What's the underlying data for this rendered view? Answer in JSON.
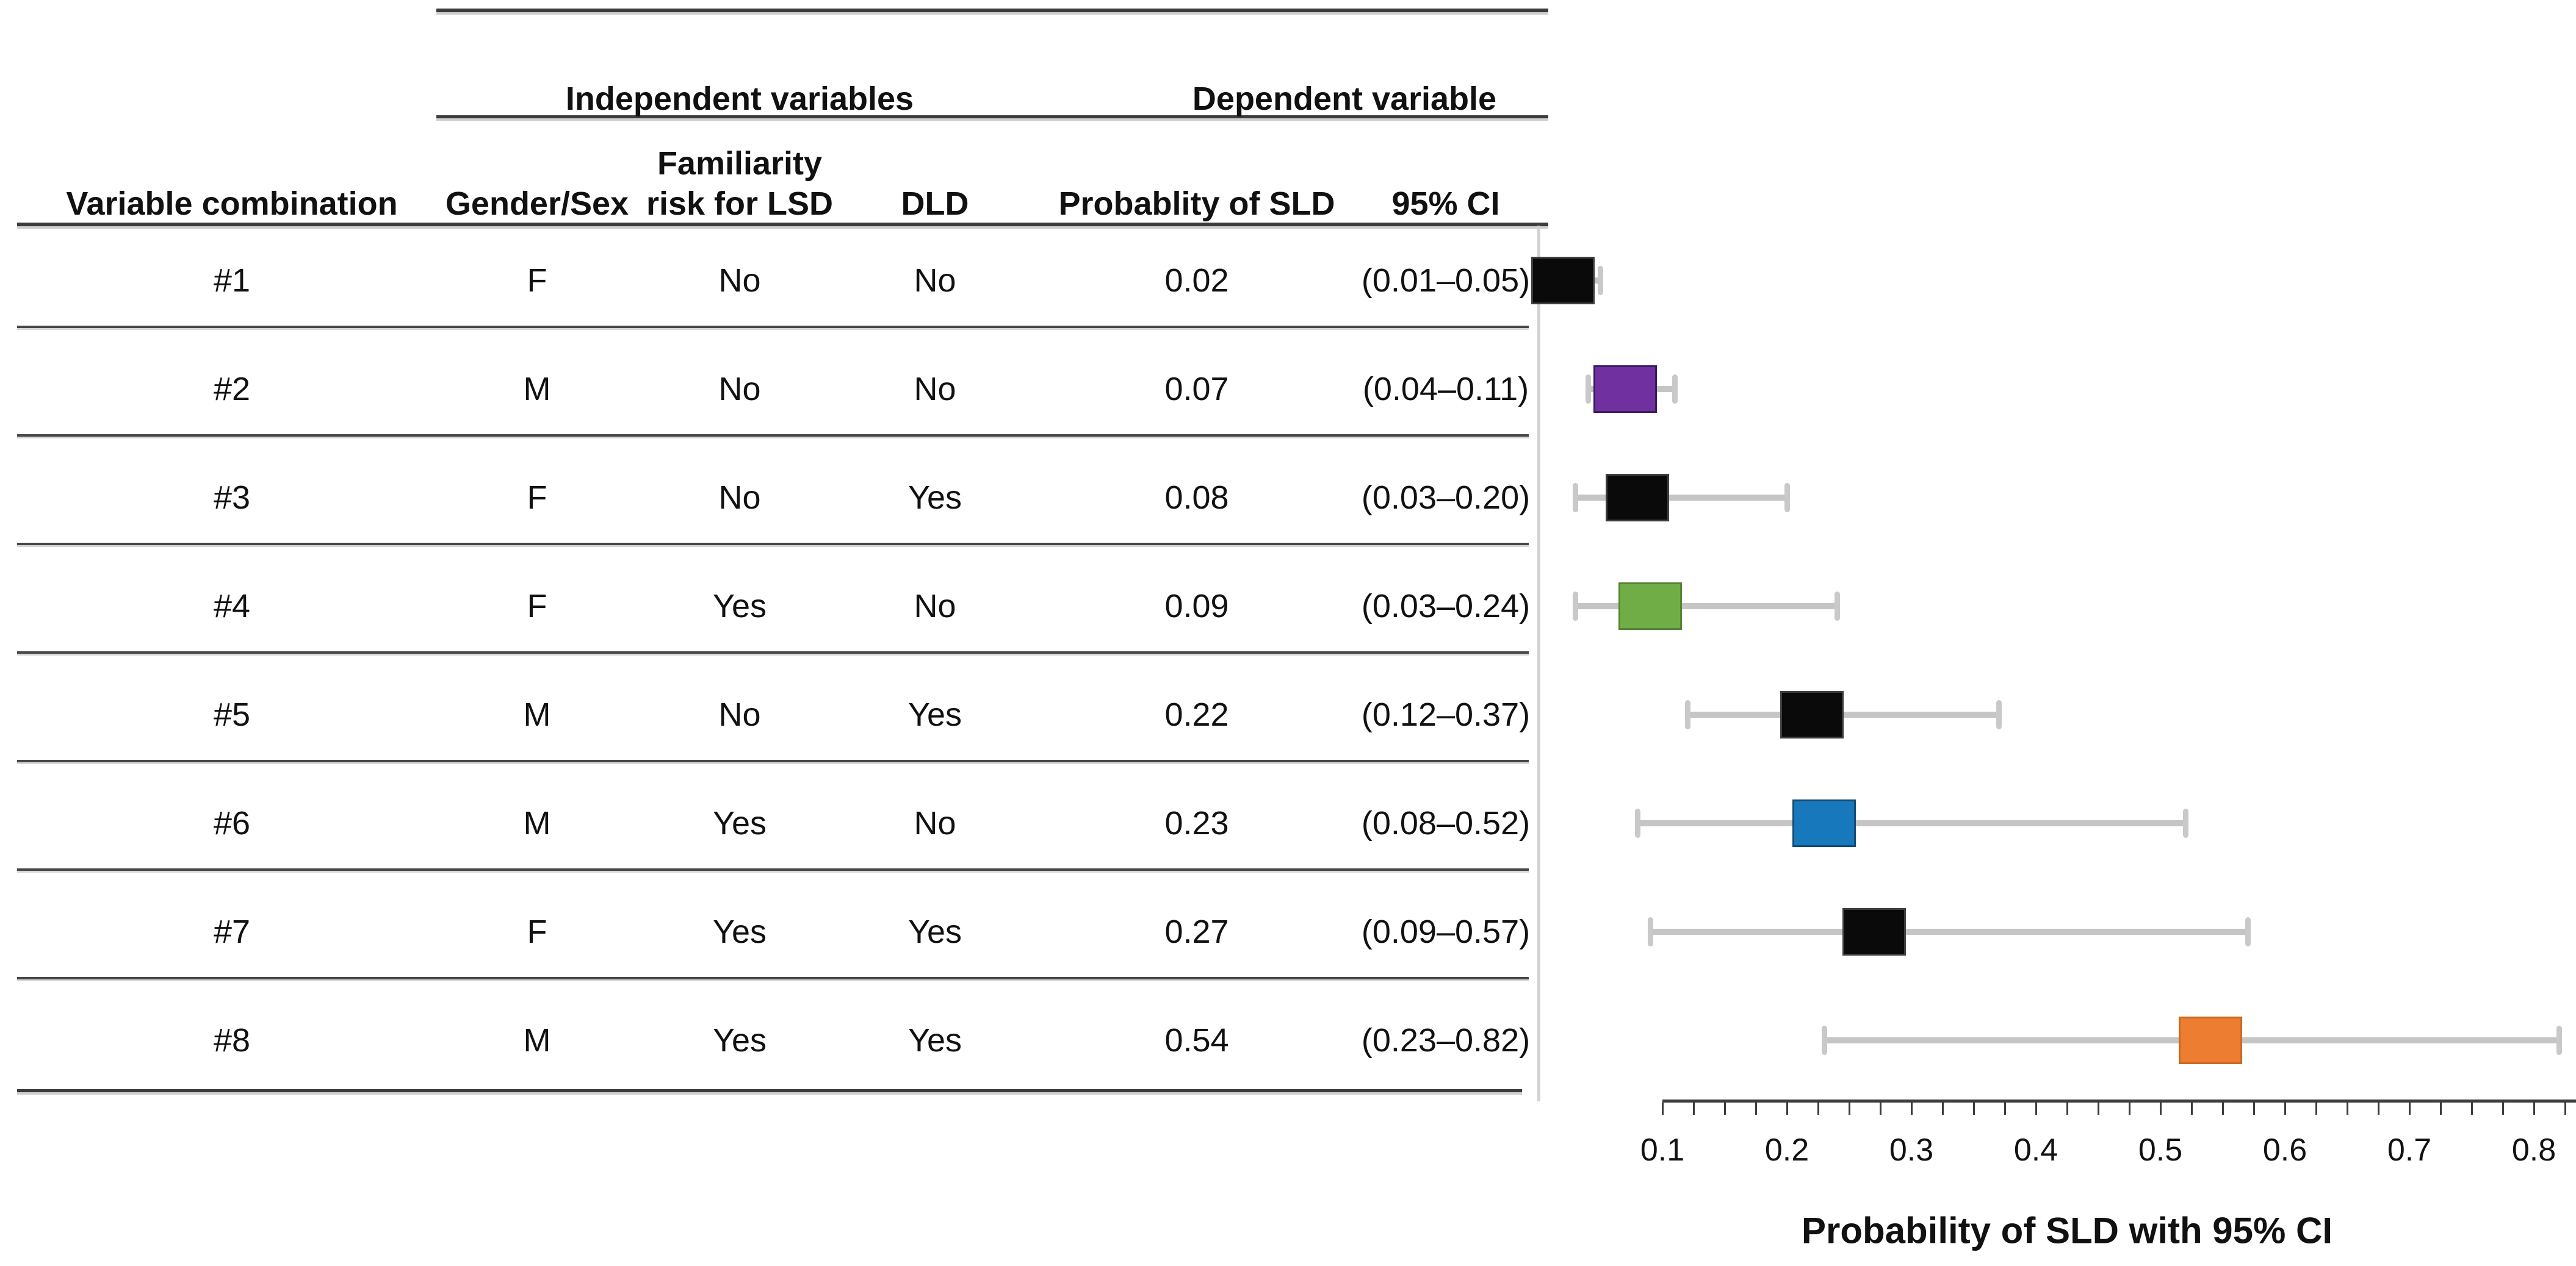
{
  "figure": {
    "kind": "table-with-forest-plot"
  },
  "table": {
    "group_headers": {
      "independent": "Independent variables",
      "dependent": "Dependent variable"
    },
    "column_headers": {
      "variable_combination": "Variable combination",
      "gender": "Gender/Sex",
      "familiarity_line1": "Familiarity",
      "familiarity_line2": "risk for LSD",
      "dld": "DLD",
      "probability": "Probablity of SLD",
      "ci": "95% CI"
    },
    "rows": [
      {
        "combination": "#1",
        "gender": "F",
        "familiarity": "No",
        "dld": "No",
        "probability": "0.02",
        "ci": "(0.01–0.05)"
      },
      {
        "combination": "#2",
        "gender": "M",
        "familiarity": "No",
        "dld": "No",
        "probability": "0.07",
        "ci": "(0.04–0.11)"
      },
      {
        "combination": "#3",
        "gender": "F",
        "familiarity": "No",
        "dld": "Yes",
        "probability": "0.08",
        "ci": "(0.03–0.20)"
      },
      {
        "combination": "#4",
        "gender": "F",
        "familiarity": "Yes",
        "dld": "No",
        "probability": "0.09",
        "ci": "(0.03–0.24)"
      },
      {
        "combination": "#5",
        "gender": "M",
        "familiarity": "No",
        "dld": "Yes",
        "probability": "0.22",
        "ci": "(0.12–0.37)"
      },
      {
        "combination": "#6",
        "gender": "M",
        "familiarity": "Yes",
        "dld": "No",
        "probability": "0.23",
        "ci": "(0.08–0.52)"
      },
      {
        "combination": "#7",
        "gender": "F",
        "familiarity": "Yes",
        "dld": "Yes",
        "probability": "0.27",
        "ci": "(0.09–0.57)"
      },
      {
        "combination": "#8",
        "gender": "M",
        "familiarity": "Yes",
        "dld": "Yes",
        "probability": "0.54",
        "ci": "(0.23–0.82)"
      }
    ]
  },
  "chart_data": {
    "type": "forest",
    "xlabel": "Probability of SLD with 95% CI",
    "x_axis": {
      "min": 0.1,
      "max": 0.83,
      "major_tick_step": 0.1,
      "minor_tick_step": 0.025,
      "tick_labels": [
        "0.1",
        "0.2",
        "0.3",
        "0.4",
        "0.5",
        "0.6",
        "0.7",
        "0.8"
      ]
    },
    "whisker_color": "#C5C5C5",
    "points": [
      {
        "label": "#1",
        "value": 0.02,
        "ci_low": 0.01,
        "ci_high": 0.05,
        "color": "#0A0A0A",
        "border": "#3F3F3F"
      },
      {
        "label": "#2",
        "value": 0.07,
        "ci_low": 0.04,
        "ci_high": 0.11,
        "color": "#7030A0",
        "border": "#3A1A5E"
      },
      {
        "label": "#3",
        "value": 0.08,
        "ci_low": 0.03,
        "ci_high": 0.2,
        "color": "#0A0A0A",
        "border": "#3F3F3F"
      },
      {
        "label": "#4",
        "value": 0.09,
        "ci_low": 0.03,
        "ci_high": 0.24,
        "color": "#70AD47",
        "border": "#568434"
      },
      {
        "label": "#5",
        "value": 0.22,
        "ci_low": 0.12,
        "ci_high": 0.37,
        "color": "#0A0A0A",
        "border": "#3F3F3F"
      },
      {
        "label": "#6",
        "value": 0.23,
        "ci_low": 0.08,
        "ci_high": 0.52,
        "color": "#1878BC",
        "border": "#124C78"
      },
      {
        "label": "#7",
        "value": 0.27,
        "ci_low": 0.09,
        "ci_high": 0.57,
        "color": "#0A0A0A",
        "border": "#3F3F3F"
      },
      {
        "label": "#8",
        "value": 0.54,
        "ci_low": 0.23,
        "ci_high": 0.82,
        "color": "#ED7D31",
        "border": "#C96A22"
      }
    ]
  }
}
